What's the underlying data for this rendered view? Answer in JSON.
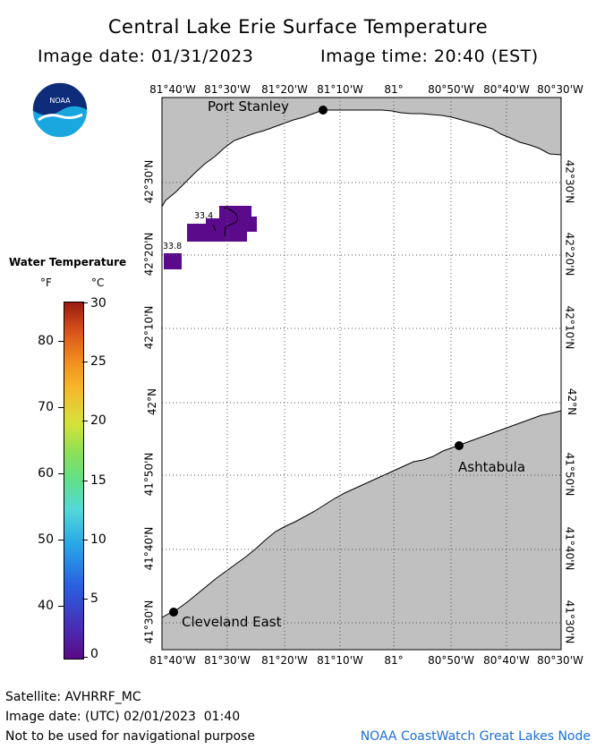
{
  "header": {
    "title": "Central Lake Erie Surface Temperature",
    "date_line": "Image date: 01/31/2023",
    "time_line": "Image time: 20:40 (EST)"
  },
  "logo": {
    "text": "NOAA",
    "icon": "noaa-logo-icon"
  },
  "map": {
    "lon_labels": [
      "81°40'W",
      "81°30'W",
      "81°20'W",
      "81°10'W",
      "81°",
      "80°50'W",
      "80°40'W",
      "80°30'W"
    ],
    "lat_labels": [
      "42°30'N",
      "42°20'N",
      "42°10'N",
      "42°N",
      "41°50'N",
      "41°40'N",
      "41°30'N"
    ],
    "stations": [
      {
        "name": "Port Stanley"
      },
      {
        "name": "Ashtabula"
      },
      {
        "name": "Cleveland East"
      }
    ],
    "temperature_labels": [
      "33.4",
      "33.8"
    ],
    "colors": {
      "land": "#c0c0c0",
      "water": "#ffffff",
      "temp_patch": "#5b0a8c",
      "grid": "#555555"
    }
  },
  "legend": {
    "title": "Water Temperature",
    "unit_f": "°F",
    "unit_c": "°C",
    "f_ticks": [
      "80",
      "70",
      "60",
      "50",
      "40"
    ],
    "c_ticks": [
      "30",
      "25",
      "20",
      "15",
      "10",
      "5",
      "0"
    ]
  },
  "footer": {
    "satellite": "Satellite: AVHRRF_MC",
    "utc_date": "Image date: (UTC) 02/01/2023  01:40",
    "warning": "Not to be used for navigational purpose",
    "credit": "NOAA CoastWatch Great Lakes Node"
  }
}
